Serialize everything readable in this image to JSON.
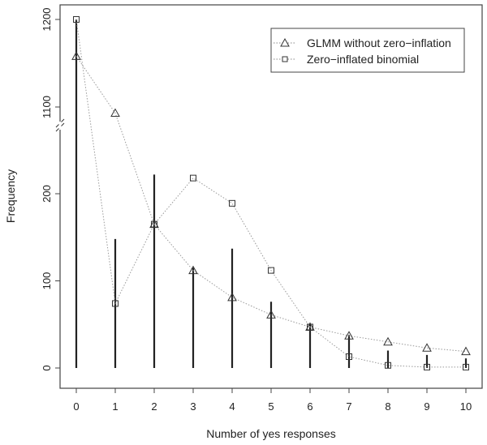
{
  "chart_data": {
    "type": "line",
    "title": "",
    "xlabel": "Number of yes responses",
    "ylabel": "Frequency",
    "x": [
      0,
      1,
      2,
      3,
      4,
      5,
      6,
      7,
      8,
      9,
      10
    ],
    "xticks": [
      "0",
      "1",
      "2",
      "3",
      "4",
      "5",
      "6",
      "7",
      "8",
      "9",
      "10"
    ],
    "yticks_lower": [
      "0",
      "100",
      "200"
    ],
    "yticks_upper": [
      "1100",
      "1200"
    ],
    "y_axis_break": true,
    "ylim_lower": [
      0,
      285
    ],
    "ylim_upper": [
      1080,
      1210
    ],
    "grid": false,
    "legend_position": "top-right",
    "observed": {
      "style": "vertical bars",
      "values": [
        1200,
        148,
        222,
        115,
        137,
        76,
        50,
        38,
        20,
        15,
        11
      ]
    },
    "series": [
      {
        "name": "GLMM without zero−inflation",
        "marker": "triangle",
        "values": [
          1158,
          1093,
          165,
          112,
          81,
          61,
          47,
          37,
          30,
          23,
          19
        ]
      },
      {
        "name": "Zero−inflated binomial",
        "marker": "square",
        "values": [
          1200,
          74,
          165,
          218,
          189,
          112,
          47,
          13,
          3,
          1,
          1
        ]
      }
    ]
  }
}
